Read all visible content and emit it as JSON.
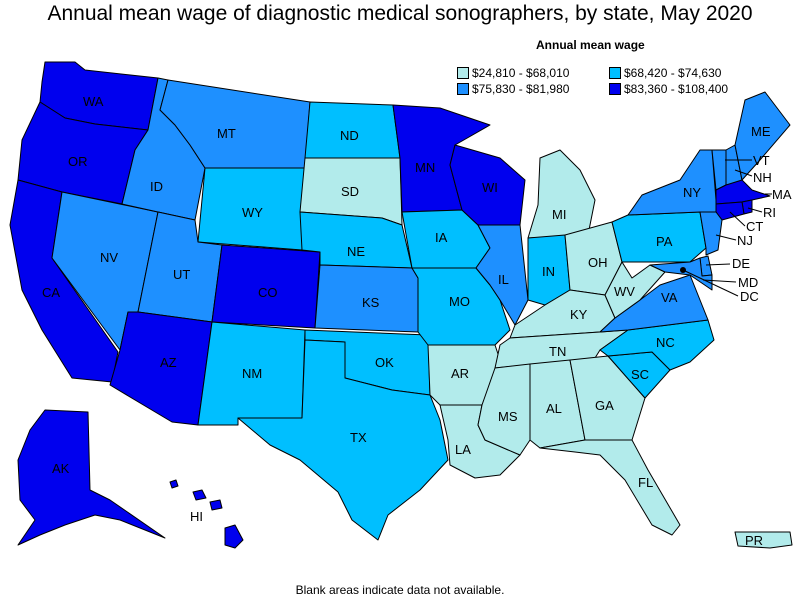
{
  "title": "Annual mean wage of diagnostic medical sonographers, by state, May 2020",
  "legend": {
    "title": "Annual mean wage",
    "items": [
      {
        "label": "$24,810 - $68,010",
        "color": "#b2ebeb"
      },
      {
        "label": "$68,420 - $74,630",
        "color": "#00bfff"
      },
      {
        "label": "$75,830 - $81,980",
        "color": "#1e90ff"
      },
      {
        "label": "$83,360 - $108,400",
        "color": "#0000ee"
      }
    ]
  },
  "footnote": "Blank areas indicate data not available.",
  "states": {
    "WA": {
      "label": "WA",
      "tier": 3
    },
    "OR": {
      "label": "OR",
      "tier": 3
    },
    "CA": {
      "label": "CA",
      "tier": 3
    },
    "NV": {
      "label": "NV",
      "tier": 2
    },
    "ID": {
      "label": "ID",
      "tier": 2
    },
    "MT": {
      "label": "MT",
      "tier": 2
    },
    "WY": {
      "label": "WY",
      "tier": 1
    },
    "UT": {
      "label": "UT",
      "tier": 2
    },
    "AZ": {
      "label": "AZ",
      "tier": 3
    },
    "CO": {
      "label": "CO",
      "tier": 3
    },
    "NM": {
      "label": "NM",
      "tier": 1
    },
    "ND": {
      "label": "ND",
      "tier": 1
    },
    "SD": {
      "label": "SD",
      "tier": 0
    },
    "NE": {
      "label": "NE",
      "tier": 1
    },
    "KS": {
      "label": "KS",
      "tier": 2
    },
    "OK": {
      "label": "OK",
      "tier": 1
    },
    "TX": {
      "label": "TX",
      "tier": 1
    },
    "MN": {
      "label": "MN",
      "tier": 3
    },
    "IA": {
      "label": "IA",
      "tier": 1
    },
    "MO": {
      "label": "MO",
      "tier": 1
    },
    "AR": {
      "label": "AR",
      "tier": 0
    },
    "LA": {
      "label": "LA",
      "tier": 0
    },
    "WI": {
      "label": "WI",
      "tier": 3
    },
    "IL": {
      "label": "IL",
      "tier": 2
    },
    "MI": {
      "label": "MI",
      "tier": 0
    },
    "IN": {
      "label": "IN",
      "tier": 1
    },
    "OH": {
      "label": "OH",
      "tier": 0
    },
    "KY": {
      "label": "KY",
      "tier": 0
    },
    "TN": {
      "label": "TN",
      "tier": 0
    },
    "MS": {
      "label": "MS",
      "tier": 0
    },
    "AL": {
      "label": "AL",
      "tier": 0
    },
    "GA": {
      "label": "GA",
      "tier": 0
    },
    "FL": {
      "label": "FL",
      "tier": 0
    },
    "SC": {
      "label": "SC",
      "tier": 1
    },
    "NC": {
      "label": "NC",
      "tier": 1
    },
    "VA": {
      "label": "VA",
      "tier": 2
    },
    "WV": {
      "label": "WV",
      "tier": 0
    },
    "PA": {
      "label": "PA",
      "tier": 1
    },
    "NY": {
      "label": "NY",
      "tier": 2
    },
    "VT": {
      "label": "VT",
      "tier": 2
    },
    "NH": {
      "label": "NH",
      "tier": 2
    },
    "ME": {
      "label": "ME",
      "tier": 2
    },
    "MA": {
      "label": "MA",
      "tier": 3
    },
    "RI": {
      "label": "RI",
      "tier": 3
    },
    "CT": {
      "label": "CT",
      "tier": 3
    },
    "NJ": {
      "label": "NJ",
      "tier": 2
    },
    "DE": {
      "label": "DE",
      "tier": 2
    },
    "MD": {
      "label": "MD",
      "tier": 2
    },
    "DC": {
      "label": "DC",
      "tier": 3
    },
    "AK": {
      "label": "AK",
      "tier": 3
    },
    "HI": {
      "label": "HI",
      "tier": 3
    },
    "PR": {
      "label": "PR",
      "tier": 0
    }
  }
}
